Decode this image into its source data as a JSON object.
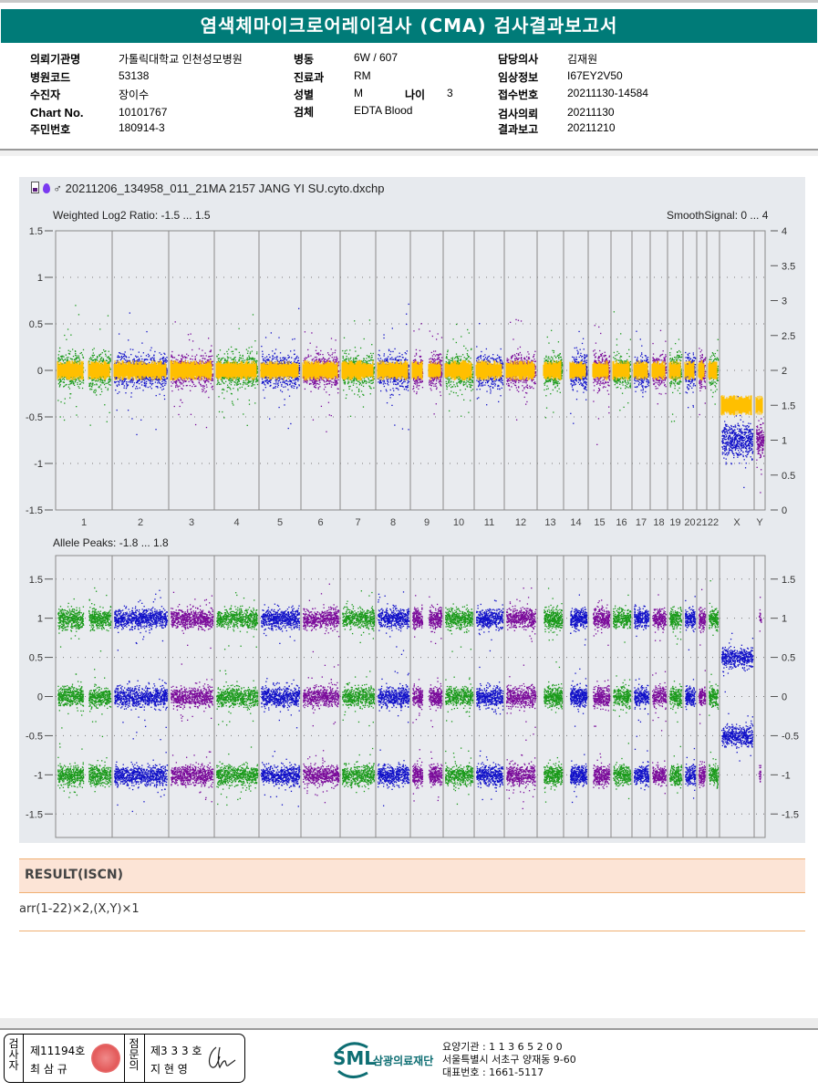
{
  "header": {
    "title": "염색체마이크로어레이검사 (CMA) 검사결과보고서"
  },
  "patient_info": {
    "col1": [
      {
        "label": "의뢰기관명",
        "value": "가톨릭대학교 인천성모병원"
      },
      {
        "label": "병원코드",
        "value": "53138"
      },
      {
        "label": "수진자",
        "value": "장이수"
      },
      {
        "label": "Chart No.",
        "value": "10101767"
      },
      {
        "label": "주민번호",
        "value": "180914-3"
      }
    ],
    "col2": [
      {
        "label": "병동",
        "value": "6W / 607"
      },
      {
        "label": "진료과",
        "value": "RM"
      },
      {
        "label": "성별",
        "value": "M"
      },
      {
        "label": "검체",
        "value": "EDTA Blood"
      }
    ],
    "age": {
      "label": "나이",
      "value": "3"
    },
    "col3": [
      {
        "label": "담당의사",
        "value": "김재원"
      },
      {
        "label": "임상정보",
        "value": "I67EY2V50"
      },
      {
        "label": "접수번호",
        "value": "20211130-14584"
      },
      {
        "label": "검사의뢰",
        "value": "20211130"
      },
      {
        "label": "결과보고",
        "value": "20211210"
      }
    ]
  },
  "figure": {
    "file_name": "20211206_134958_011_21MA 2157 JANG YI SU.cyto.dxchp",
    "icons": [
      "chip-icon",
      "pin-icon",
      "male-icon"
    ]
  },
  "chart_data": [
    {
      "type": "scatter",
      "title": "Weighted Log2 Ratio: -1.5 ... 1.5",
      "right_title": "SmoothSignal: 0 ... 4",
      "ylabel": "Weighted Log2 Ratio",
      "ylim": [
        -1.5,
        1.5
      ],
      "y2lim": [
        0,
        4
      ],
      "yticks": [
        "1.5",
        "1",
        "0.5",
        "0",
        "-0.5",
        "-1",
        "-1.5"
      ],
      "y2ticks": [
        "4",
        "3.5",
        "3",
        "2.5",
        "2",
        "1.5",
        "1",
        "0.5",
        "0"
      ],
      "grid": true,
      "categories": [
        "1",
        "2",
        "3",
        "4",
        "5",
        "6",
        "7",
        "8",
        "9",
        "10",
        "11",
        "12",
        "13",
        "14",
        "15",
        "16",
        "17",
        "18",
        "19",
        "20",
        "21",
        "22",
        "X",
        "Y"
      ],
      "series_colors": [
        "#1a9a1a",
        "#1010c8",
        "#7a0a9a"
      ],
      "smooth_color": "#ffbf00",
      "log2_ratio_center": [
        0,
        0,
        0,
        0,
        0,
        0,
        0,
        0,
        0,
        0,
        0,
        0,
        0,
        0,
        0,
        0,
        0,
        0,
        0,
        0,
        0,
        0,
        -0.75,
        -0.75
      ],
      "smooth_signal": [
        2,
        2,
        2,
        2,
        2,
        2,
        2,
        2,
        2,
        2,
        2,
        2,
        2,
        2,
        2,
        2,
        2,
        2,
        2,
        2,
        2,
        2,
        1,
        1
      ]
    },
    {
      "type": "scatter",
      "title": "Allele Peaks: -1.8 ... 1.8",
      "ylabel": "Allele Peaks",
      "ylim": [
        -1.8,
        1.8
      ],
      "yticks": [
        "1.5",
        "1",
        "0.5",
        "0",
        "-0.5",
        "-1",
        "-1.5"
      ],
      "y2ticks": [
        "1.5",
        "1",
        "0.5",
        "0",
        "-0.5",
        "-1",
        "-1.5"
      ],
      "grid": true,
      "categories": [
        "1",
        "2",
        "3",
        "4",
        "5",
        "6",
        "7",
        "8",
        "9",
        "10",
        "11",
        "12",
        "13",
        "14",
        "15",
        "16",
        "17",
        "18",
        "19",
        "20",
        "21",
        "22",
        "X",
        "Y"
      ],
      "peaks_autosome": [
        1,
        0,
        -1
      ],
      "peaks_X": [
        0.5,
        -0.5
      ],
      "peaks_Y": [
        1,
        -1
      ]
    }
  ],
  "result": {
    "heading": "RESULT(ISCN)",
    "value": "arr(1-22)×2,(X,Y)×1"
  },
  "footer": {
    "examiner": {
      "vlabel": "검사자",
      "license": "제11194호",
      "name": "최 삼 규"
    },
    "reviewer": {
      "vlabel": "점문의",
      "license": "제3 3 3 호",
      "name": "지 현 영"
    },
    "logo": {
      "brand": "SML",
      "org": "삼광의료재단"
    },
    "address_lines": [
      "요양기관 : 1 1 3 6 5 2 0 0",
      "서울특별시 서초구 양재동 9-60",
      "대표번호 : 1661-5117"
    ]
  }
}
